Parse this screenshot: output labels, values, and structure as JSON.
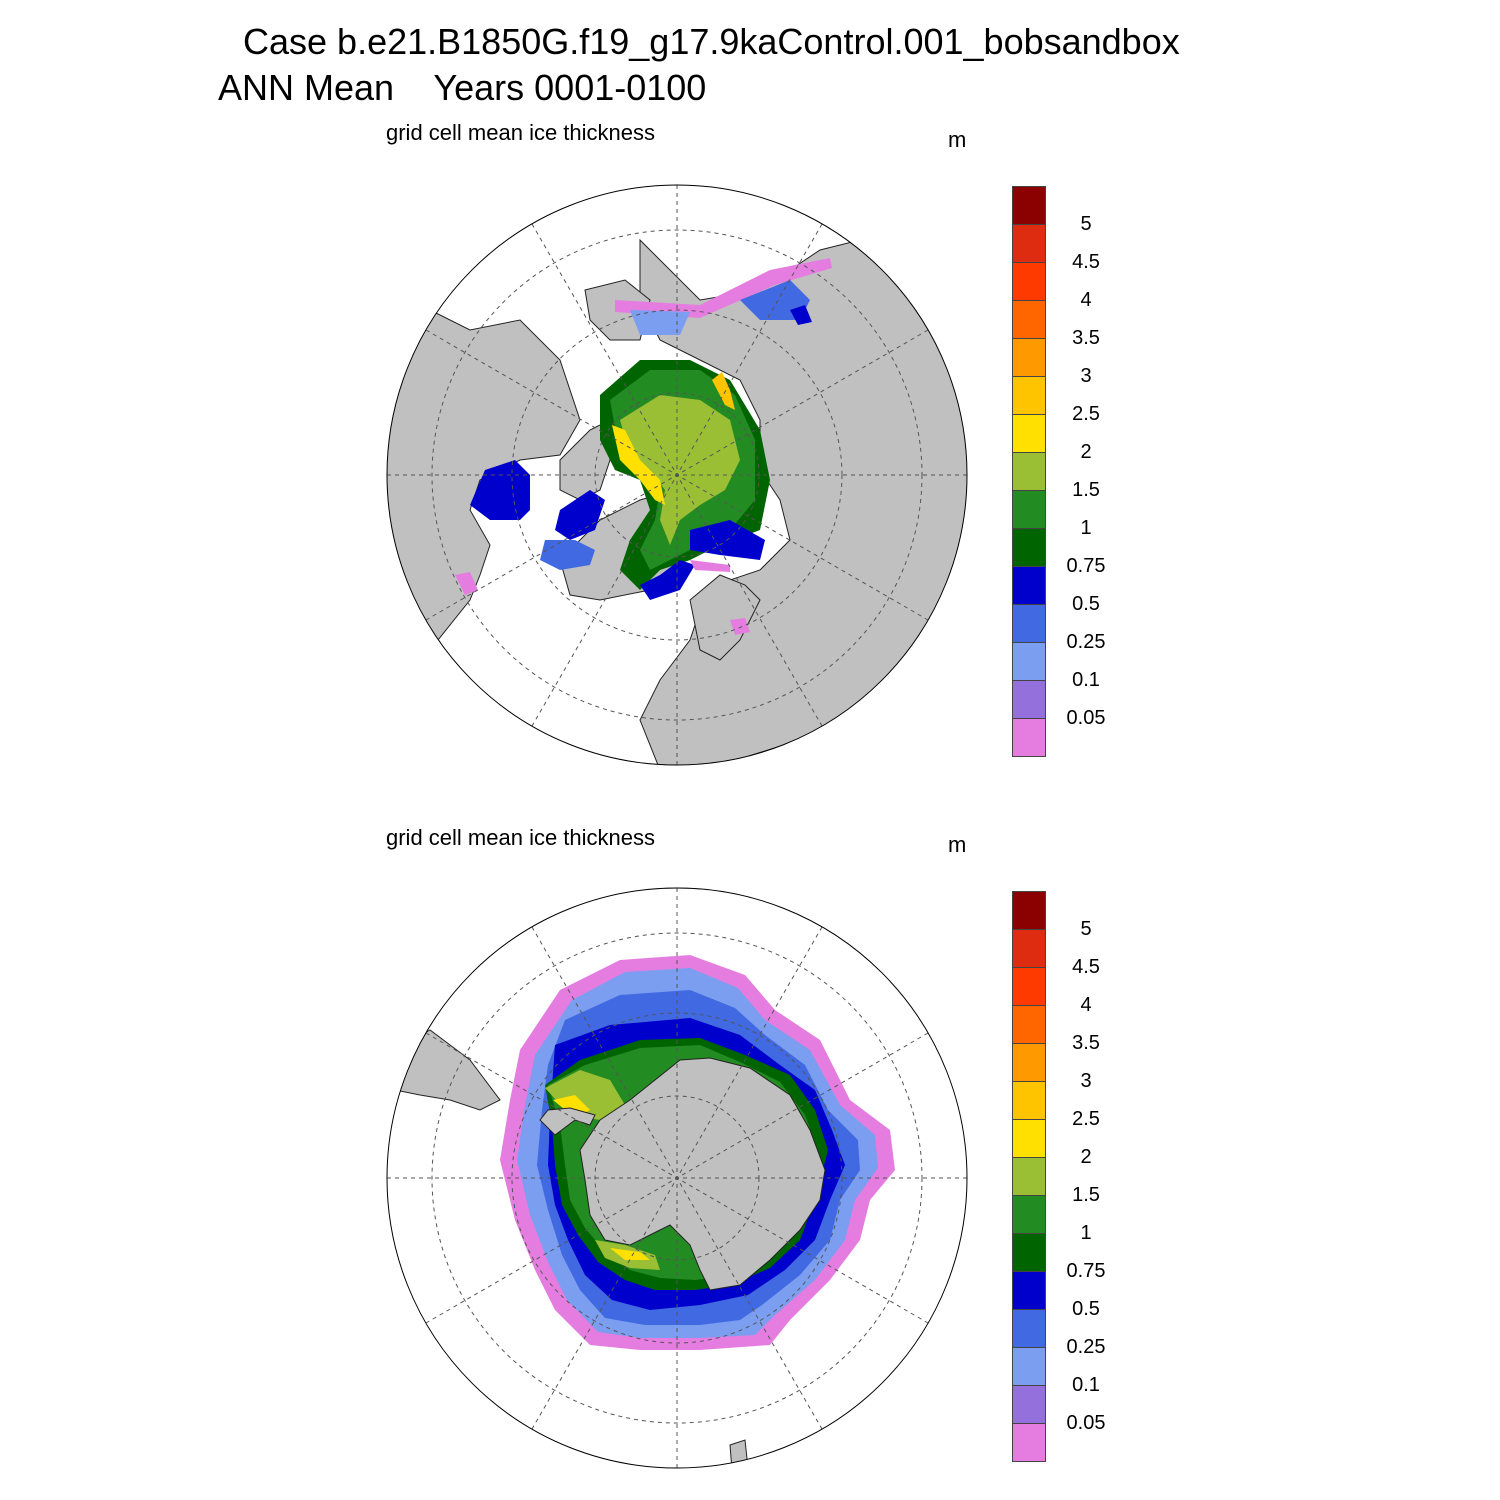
{
  "title": {
    "line1": "Case b.e21.B1850G.f19_g17.9kaControl.001_bobsandbox",
    "line2": "ANN Mean    Years 0001-0100"
  },
  "panels": [
    {
      "id": "nh",
      "variable_label": "grid cell mean ice thickness",
      "units": "m"
    },
    {
      "id": "sh",
      "variable_label": "grid cell mean ice thickness",
      "units": "m"
    }
  ],
  "colorbar": {
    "tick_labels": [
      "5",
      "4.5",
      "4",
      "3.5",
      "3",
      "2.5",
      "2",
      "1.5",
      "1",
      "0.75",
      "0.5",
      "0.25",
      "0.1",
      "0.05"
    ],
    "colors_top_to_bottom": [
      "#8b0000",
      "#dd2c10",
      "#ff3a00",
      "#ff6600",
      "#ff9900",
      "#ffc400",
      "#ffe000",
      "#9bbf34",
      "#228b22",
      "#006400",
      "#0000cd",
      "#4169e1",
      "#7b9ef0",
      "#9370db",
      "#e57de0"
    ]
  },
  "map_colors": {
    "land": "#c0c0c0",
    "ocean": "#ffffff",
    "grid": "#555555"
  }
}
